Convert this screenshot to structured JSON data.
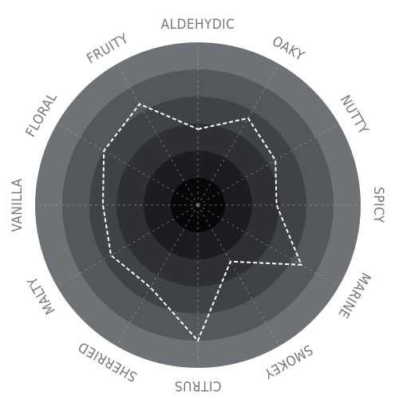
{
  "chart_data": {
    "type": "radar",
    "categories": [
      "ALDEHYDIC",
      "OAKY",
      "NUTTY",
      "SPICY",
      "MARINE",
      "SMOKEY",
      "CITRUS",
      "SHERRIED",
      "MALTY",
      "VANILLA",
      "FLORAL",
      "FRUITY"
    ],
    "values": [
      2.8,
      3.7,
      3.3,
      2.9,
      4.4,
      2.4,
      5.0,
      3.5,
      3.7,
      3.5,
      4.0,
      4.3
    ],
    "rlim": [
      0,
      6
    ],
    "ring_count": 6,
    "grid": true,
    "colors": {
      "rings": [
        "#070709",
        "#1c1d22",
        "#2e3036",
        "#3f4247",
        "#54575c",
        "#6e7175"
      ],
      "series_line": "#ffffff",
      "gridlines": "#a8a8a8",
      "labels": "#777777"
    }
  }
}
